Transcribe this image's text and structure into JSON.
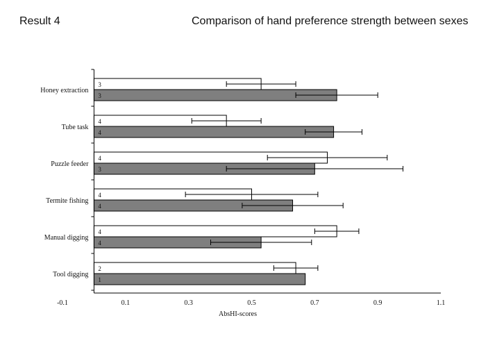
{
  "header": {
    "left_text": "Result 4",
    "right_text": "Comparison of hand preference strength between sexes"
  },
  "colors": {
    "series_white": "#ffffff",
    "series_grey": "#7f7f7f",
    "axis": "#000000"
  },
  "chart_data": {
    "type": "bar",
    "orientation": "horizontal",
    "xlabel": "AbsHI-scores",
    "ylabel": "",
    "xlim": [
      -0.1,
      1.1
    ],
    "xticks": [
      "-0.1",
      "0.1",
      "0.3",
      "0.5",
      "0.7",
      "0.9",
      "1.1"
    ],
    "grid": false,
    "categories": [
      "Honey extraction",
      "Tube task",
      "Puzzle feeder",
      "Termite fishing",
      "Manual digging",
      "Tool digging"
    ],
    "series": [
      {
        "fill": "white",
        "values": [
          0.53,
          0.42,
          0.74,
          0.5,
          0.77,
          0.64
        ],
        "errors": [
          0.11,
          0.11,
          0.19,
          0.21,
          0.07,
          0.07
        ],
        "bar_labels": [
          "3",
          "4",
          "4",
          "4",
          "4",
          "2"
        ]
      },
      {
        "fill": "grey",
        "values": [
          0.77,
          0.76,
          0.7,
          0.63,
          0.53,
          0.67
        ],
        "errors": [
          0.13,
          0.09,
          0.28,
          0.16,
          0.16,
          0.0
        ],
        "bar_labels": [
          "3",
          "4",
          "3",
          "4",
          "4",
          "1"
        ]
      }
    ]
  }
}
